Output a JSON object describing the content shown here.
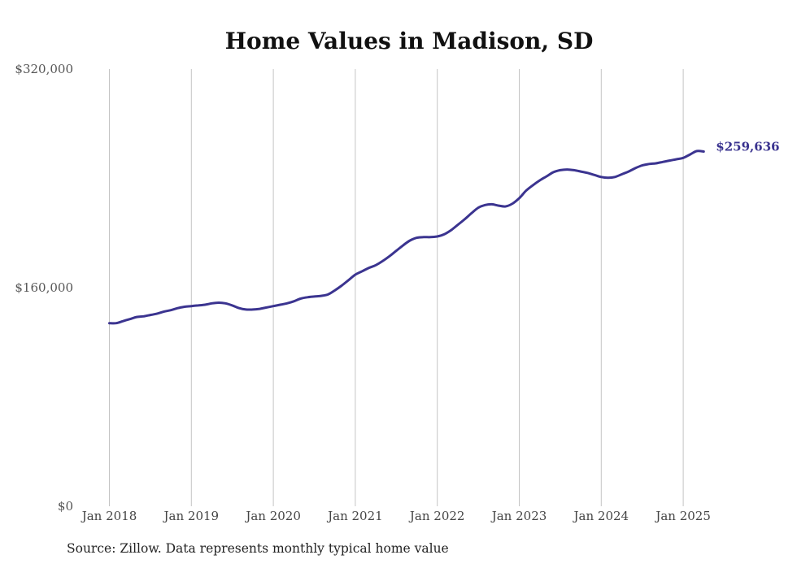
{
  "chart_data": {
    "type": "line",
    "title": "Home Values in Madison, SD",
    "xlabel": "",
    "ylabel": "",
    "ylim": [
      0,
      320000
    ],
    "yticks": [
      0,
      160000,
      320000
    ],
    "ytick_labels": [
      "$0",
      "$160,000",
      "$320,000"
    ],
    "x_range": [
      "2018-01",
      "2025-04"
    ],
    "xticks": [
      "2018-01",
      "2019-01",
      "2020-01",
      "2021-01",
      "2022-01",
      "2023-01",
      "2024-01",
      "2025-01"
    ],
    "xtick_labels": [
      "Jan 2018",
      "Jan 2019",
      "Jan 2020",
      "Jan 2021",
      "Jan 2022",
      "Jan 2023",
      "Jan 2024",
      "Jan 2025"
    ],
    "grid": "vertical",
    "color": "#3b3490",
    "end_label": "$259,636",
    "series": [
      {
        "x": [
          "2018-01",
          "2018-02",
          "2018-03",
          "2018-04",
          "2018-05",
          "2018-06",
          "2018-07",
          "2018-08",
          "2018-09",
          "2018-10",
          "2018-11",
          "2018-12",
          "2019-01",
          "2019-02",
          "2019-03",
          "2019-04",
          "2019-05",
          "2019-06",
          "2019-07",
          "2019-08",
          "2019-09",
          "2019-10",
          "2019-11",
          "2019-12",
          "2020-01",
          "2020-02",
          "2020-03",
          "2020-04",
          "2020-05",
          "2020-06",
          "2020-07",
          "2020-08",
          "2020-09",
          "2020-10",
          "2020-11",
          "2020-12",
          "2021-01",
          "2021-02",
          "2021-03",
          "2021-04",
          "2021-05",
          "2021-06",
          "2021-07",
          "2021-08",
          "2021-09",
          "2021-10",
          "2021-11",
          "2021-12",
          "2022-01",
          "2022-02",
          "2022-03",
          "2022-04",
          "2022-05",
          "2022-06",
          "2022-07",
          "2022-08",
          "2022-09",
          "2022-10",
          "2022-11",
          "2022-12",
          "2023-01",
          "2023-02",
          "2023-03",
          "2023-04",
          "2023-05",
          "2023-06",
          "2023-07",
          "2023-08",
          "2023-09",
          "2023-10",
          "2023-11",
          "2023-12",
          "2024-01",
          "2024-02",
          "2024-03",
          "2024-04",
          "2024-05",
          "2024-06",
          "2024-07",
          "2024-08",
          "2024-09",
          "2024-10",
          "2024-11",
          "2024-12",
          "2025-01",
          "2025-02",
          "2025-03",
          "2025-04"
        ],
        "y": [
          134000,
          134000,
          135500,
          137000,
          138500,
          139000,
          140000,
          141000,
          142500,
          143500,
          145000,
          146000,
          146500,
          147000,
          147500,
          148500,
          149000,
          148500,
          147000,
          145000,
          144000,
          144000,
          144500,
          145500,
          146500,
          147500,
          148500,
          150000,
          152000,
          153000,
          153500,
          154000,
          155000,
          158000,
          161500,
          165500,
          169500,
          172000,
          174500,
          176500,
          179500,
          183000,
          187000,
          191000,
          194500,
          196500,
          197000,
          197000,
          197500,
          199000,
          202000,
          206000,
          210000,
          214500,
          218500,
          220500,
          221000,
          220000,
          219500,
          221500,
          225500,
          231000,
          235000,
          238500,
          241500,
          244500,
          246000,
          246500,
          246000,
          245000,
          244000,
          242500,
          241000,
          240500,
          241000,
          243000,
          245000,
          247500,
          249500,
          250500,
          251000,
          252000,
          253000,
          254000,
          255000,
          257500,
          260000,
          259636
        ]
      }
    ]
  },
  "source_note": "Source: Zillow. Data represents monthly typical home value"
}
